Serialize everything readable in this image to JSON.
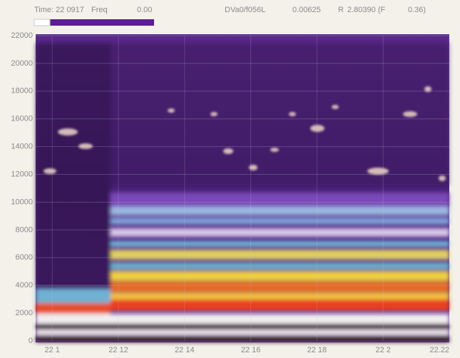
{
  "chart_data": {
    "type": "spectrogram",
    "readout": [
      "Time: 22 0917",
      "Freq",
      "0.00",
      "DVa0/f056L",
      "0.00625",
      "R",
      "2.80390 (F",
      "0.36)"
    ],
    "ylim": [
      0,
      22000
    ],
    "yticks": [
      0,
      2000,
      4000,
      6000,
      8000,
      10000,
      12000,
      14000,
      16000,
      18000,
      20000,
      22000
    ],
    "xlim": [
      9.5,
      22
    ],
    "xticks": [
      {
        "value": 10,
        "label": "22 1"
      },
      {
        "value": 12,
        "label": "22 12"
      },
      {
        "value": 14,
        "label": "22 14"
      },
      {
        "value": 16,
        "label": "22 16"
      },
      {
        "value": 18,
        "label": "22 18"
      },
      {
        "value": 20,
        "label": "22 2"
      },
      {
        "value": 22,
        "label": "22.22"
      }
    ],
    "grid": true
  }
}
